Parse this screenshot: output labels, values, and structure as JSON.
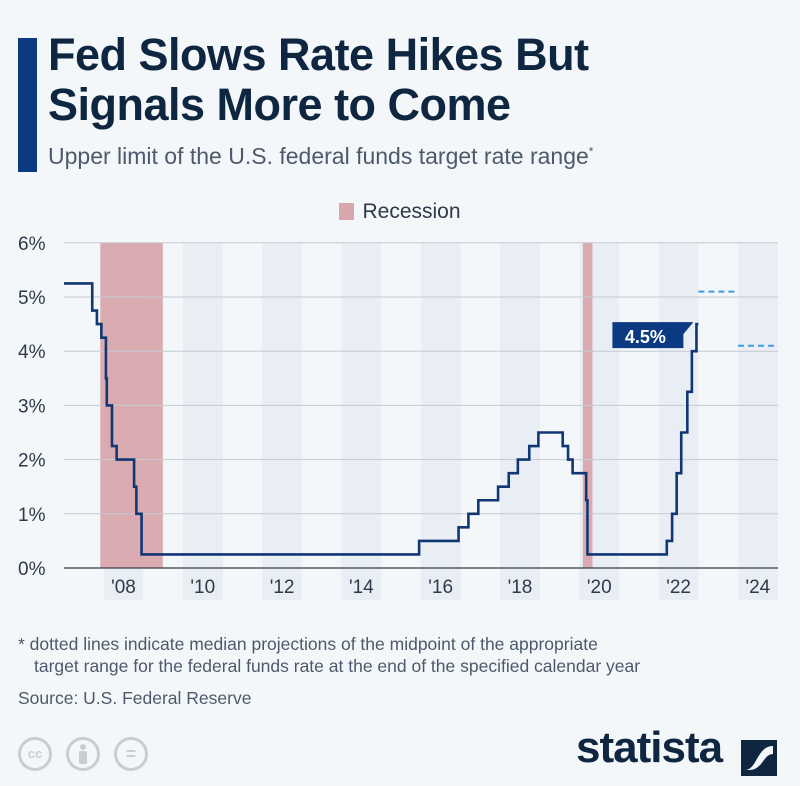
{
  "header": {
    "title_line1": "Fed Slows Rate Hikes But",
    "title_line2": "Signals More to Come",
    "subtitle": "Upper limit of the U.S. federal funds target rate range",
    "subtitle_marker": "*"
  },
  "colors": {
    "accent": "#0b3a82",
    "line": "#113674",
    "recession": "#d8a7ad",
    "projection": "#3d9be0",
    "label_bg": "#0b3a82"
  },
  "chart_data": {
    "type": "line",
    "step": true,
    "title": "Fed Slows Rate Hikes But Signals More to Come",
    "subtitle": "Upper limit of the U.S. federal funds target rate range",
    "ylim": [
      0,
      6
    ],
    "xlim": [
      "2007-01-01",
      "2025-01-01"
    ],
    "y_ticks": [
      "0%",
      "1%",
      "2%",
      "3%",
      "4%",
      "5%",
      "6%"
    ],
    "x_ticks": [
      {
        "year": 2008,
        "label": "'08"
      },
      {
        "year": 2010,
        "label": "'10"
      },
      {
        "year": 2012,
        "label": "'12"
      },
      {
        "year": 2014,
        "label": "'14"
      },
      {
        "year": 2016,
        "label": "'16"
      },
      {
        "year": 2018,
        "label": "'18"
      },
      {
        "year": 2020,
        "label": "'20"
      },
      {
        "year": 2022,
        "label": "'22"
      },
      {
        "year": 2024,
        "label": "'24"
      }
    ],
    "grid": true,
    "legend": {
      "position": "top-center",
      "entries": [
        "Recession"
      ]
    },
    "recessions": [
      {
        "start": "2007-12-01",
        "end": "2009-06-30"
      },
      {
        "start": "2020-02-01",
        "end": "2020-04-30"
      }
    ],
    "series": [
      {
        "points": [
          [
            "2007-01-01",
            5.25
          ],
          [
            "2007-09-18",
            4.75
          ],
          [
            "2007-10-31",
            4.5
          ],
          [
            "2007-12-11",
            4.25
          ],
          [
            "2008-01-22",
            3.5
          ],
          [
            "2008-01-30",
            3.0
          ],
          [
            "2008-03-18",
            2.25
          ],
          [
            "2008-04-30",
            2.0
          ],
          [
            "2008-10-08",
            1.5
          ],
          [
            "2008-10-29",
            1.0
          ],
          [
            "2008-12-16",
            0.25
          ],
          [
            "2015-12-16",
            0.5
          ],
          [
            "2016-12-14",
            0.75
          ],
          [
            "2017-03-15",
            1.0
          ],
          [
            "2017-06-14",
            1.25
          ],
          [
            "2017-12-13",
            1.5
          ],
          [
            "2018-03-21",
            1.75
          ],
          [
            "2018-06-13",
            2.0
          ],
          [
            "2018-09-26",
            2.25
          ],
          [
            "2018-12-19",
            2.5
          ],
          [
            "2019-07-31",
            2.25
          ],
          [
            "2019-09-18",
            2.0
          ],
          [
            "2019-10-30",
            1.75
          ],
          [
            "2020-03-03",
            1.25
          ],
          [
            "2020-03-15",
            0.25
          ],
          [
            "2022-03-16",
            0.5
          ],
          [
            "2022-05-04",
            1.0
          ],
          [
            "2022-06-15",
            1.75
          ],
          [
            "2022-07-27",
            2.5
          ],
          [
            "2022-09-21",
            3.25
          ],
          [
            "2022-11-02",
            4.0
          ],
          [
            "2022-12-14",
            4.5
          ],
          [
            "2023-01-01",
            4.5
          ]
        ]
      }
    ],
    "projections": [
      {
        "year": 2023,
        "value": 5.1
      },
      {
        "year": 2024,
        "value": 4.1
      }
    ],
    "annotation": {
      "label": "4.5%",
      "value": 4.5
    }
  },
  "footer": {
    "footnote_line1": "* dotted lines indicate median projections of the midpoint of the appropriate",
    "footnote_line2": "target range for the federal funds rate at the end of the specified calendar year",
    "source": "Source: U.S. Federal Reserve",
    "logo": "statista",
    "license_icons": [
      "cc-icon",
      "by-icon",
      "nd-icon"
    ]
  }
}
